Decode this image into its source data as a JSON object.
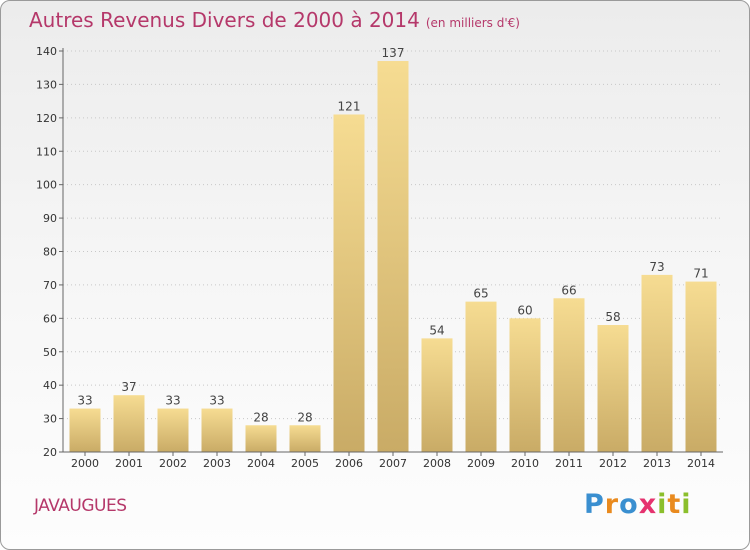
{
  "title": {
    "main": "Autres Revenus Divers de 2000 à 2014",
    "unit": "(en milliers d'€)"
  },
  "commune": "JAVAUGUES",
  "logo": {
    "text": "Proxiti",
    "letters": [
      {
        "ch": "P",
        "color": "#3a8fd0"
      },
      {
        "ch": "r",
        "color": "#e98a1e"
      },
      {
        "ch": "o",
        "color": "#3a8fd0"
      },
      {
        "ch": "x",
        "color": "#e5326e"
      },
      {
        "ch": "i",
        "color": "#8bbf2c"
      },
      {
        "ch": "t",
        "color": "#e98a1e"
      },
      {
        "ch": "i",
        "color": "#8bbf2c"
      }
    ]
  },
  "colors": {
    "title": "#b5386a",
    "bar_light": "#f6dc92",
    "bar_dark": "#c9ab66",
    "grid": "#c8c8c8",
    "axis": "#666666"
  },
  "chart_data": {
    "type": "bar",
    "title": "Autres Revenus Divers de 2000 à 2014",
    "ylabel": "(en milliers d'€)",
    "xlabel": "",
    "categories": [
      "2000",
      "2001",
      "2002",
      "2003",
      "2004",
      "2005",
      "2006",
      "2007",
      "2008",
      "2009",
      "2010",
      "2011",
      "2012",
      "2013",
      "2014"
    ],
    "values": [
      33,
      37,
      33,
      33,
      28,
      28,
      121,
      137,
      54,
      65,
      60,
      66,
      58,
      73,
      71
    ],
    "ylim": [
      20,
      140
    ],
    "yticks": [
      20,
      30,
      40,
      50,
      60,
      70,
      80,
      90,
      100,
      110,
      120,
      130,
      140
    ],
    "grid": true,
    "legend": "none"
  }
}
